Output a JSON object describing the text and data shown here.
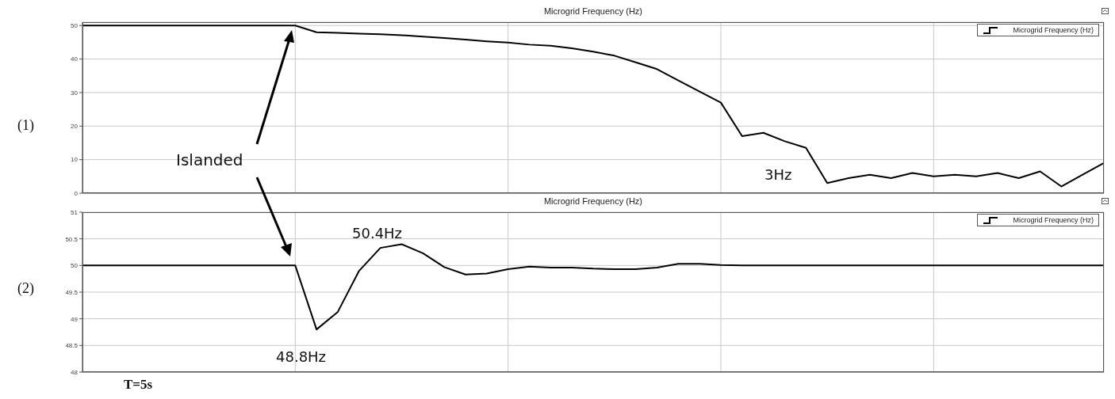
{
  "chart_data": [
    {
      "type": "line",
      "title": "Microgrid Frequency (Hz)",
      "categories": [
        null,
        null,
        null,
        null,
        null,
        null,
        null,
        null,
        null,
        null,
        null,
        null,
        null,
        null,
        null,
        null,
        null,
        null,
        null,
        null,
        null,
        null,
        null,
        null,
        null,
        null,
        null,
        null,
        null,
        null,
        null,
        null,
        null,
        null,
        null,
        null,
        null,
        null,
        null,
        null,
        null,
        null,
        null,
        null,
        null,
        null,
        null,
        null,
        null
      ],
      "series": [
        {
          "name": "Microgrid Frequency (Hz)",
          "color": "#000000",
          "values": [
            50,
            50,
            50,
            50,
            50,
            50,
            50,
            50,
            50,
            50,
            50,
            48,
            47.8,
            47.6,
            47.4,
            47.1,
            46.7,
            46.3,
            45.8,
            45.3,
            44.9,
            44.3,
            44,
            43.2,
            42.2,
            41,
            39,
            37,
            33.6,
            30.3,
            27,
            17,
            18,
            15.5,
            13.5,
            3,
            4.5,
            5.5,
            4.5,
            6,
            5,
            5.5,
            5,
            6,
            4.5,
            6.5,
            2,
            5.5,
            9
          ]
        }
      ],
      "ylim": [
        0,
        51
      ],
      "yticks": [
        0,
        10,
        20,
        30,
        40,
        50
      ],
      "grid": true,
      "legend": "top right",
      "tick_labels": "y",
      "annotations": [
        "(1)",
        "Islanded",
        "3Hz"
      ]
    },
    {
      "type": "line",
      "title": "Microgrid Frequency (Hz)",
      "categories": [
        null,
        null,
        null,
        null,
        null,
        null,
        null,
        null,
        null,
        null,
        null,
        null,
        null,
        null,
        null,
        null,
        null,
        null,
        null,
        null,
        null,
        null,
        null,
        null,
        null,
        null,
        null,
        null,
        null,
        null,
        null,
        null,
        null,
        null,
        null,
        null,
        null,
        null,
        null,
        null,
        null,
        null,
        null,
        null,
        null,
        null,
        null,
        null,
        null
      ],
      "series": [
        {
          "name": "Microgrid Frequency (Hz)",
          "color": "#000000",
          "values": [
            50,
            50,
            50,
            50,
            50,
            50,
            50,
            50,
            50,
            50,
            50,
            48.8,
            49.13,
            49.9,
            50.33,
            50.4,
            50.23,
            49.97,
            49.83,
            49.85,
            49.93,
            49.98,
            49.96,
            49.96,
            49.94,
            49.93,
            49.93,
            49.96,
            50.03,
            50.03,
            50.01,
            50,
            50,
            50,
            50,
            50,
            50,
            50,
            50,
            50,
            50,
            50,
            50,
            50,
            50,
            50,
            50,
            50,
            50
          ]
        }
      ],
      "ylim": [
        48,
        51
      ],
      "yticks": [
        48,
        48.5,
        49,
        49.5,
        50,
        50.5,
        51
      ],
      "grid": true,
      "legend": "top right",
      "tick_labels": "y",
      "annotations": [
        "(2)",
        "50.4Hz",
        "48.8Hz",
        "T=5s"
      ]
    }
  ]
}
